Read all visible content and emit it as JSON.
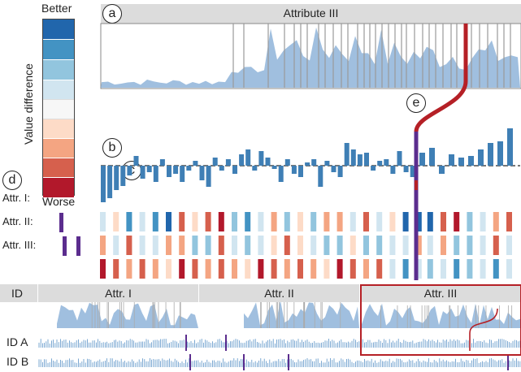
{
  "legend": {
    "top_label": "Better",
    "bottom_label": "Worse",
    "axis_label": "Value difference",
    "colors": [
      "#2166ac",
      "#4393c3",
      "#92c5de",
      "#d1e5f0",
      "#f7f7f7",
      "#fddbc7",
      "#f4a582",
      "#d6604d",
      "#b2182b"
    ]
  },
  "panel_a": {
    "marker": "a",
    "title": "Attribute III"
  },
  "markers": {
    "b": "b",
    "c": "c",
    "d": "d",
    "e": "e"
  },
  "rows": {
    "attr1": "Attr. I:",
    "attr2": "Attr. II:",
    "attr3": "Attr. III:"
  },
  "bottom": {
    "id_header": "ID",
    "columns": [
      "Attr. I",
      "Attr. II",
      "Attr. III"
    ],
    "row_a": "ID A",
    "row_b": "ID B"
  },
  "colors": {
    "accent_red": "#b52026",
    "accent_purple": "#5b2d8e",
    "area_blue": "#8fb4d9",
    "bar_blue": "#3f7fb5"
  }
}
